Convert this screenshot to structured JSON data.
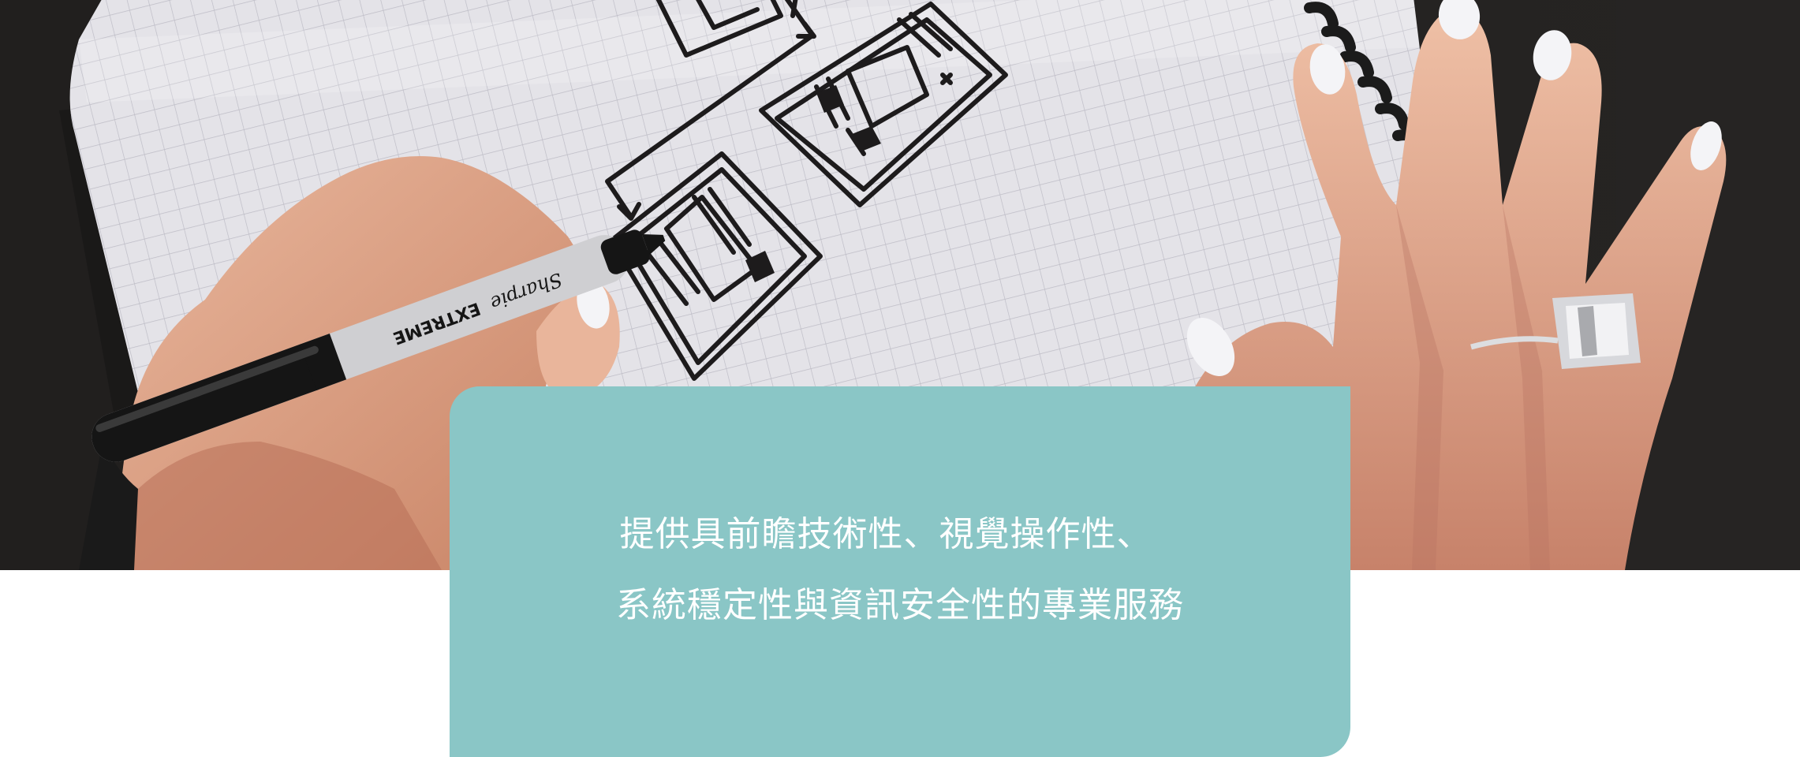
{
  "hero": {
    "image_icon": "photo-hand-drawing-wireframe",
    "marker_brand": "Sharpie",
    "marker_model": "EXTREME",
    "background_color": "#262423",
    "paper_color": "#e4e3e8"
  },
  "caption": {
    "line1": "提供具前瞻技術性、視覺操作性、",
    "line2": "系統穩定性與資訊安全性的專業服務",
    "background_color": "#8ac6c6",
    "text_color": "#ffffff"
  }
}
